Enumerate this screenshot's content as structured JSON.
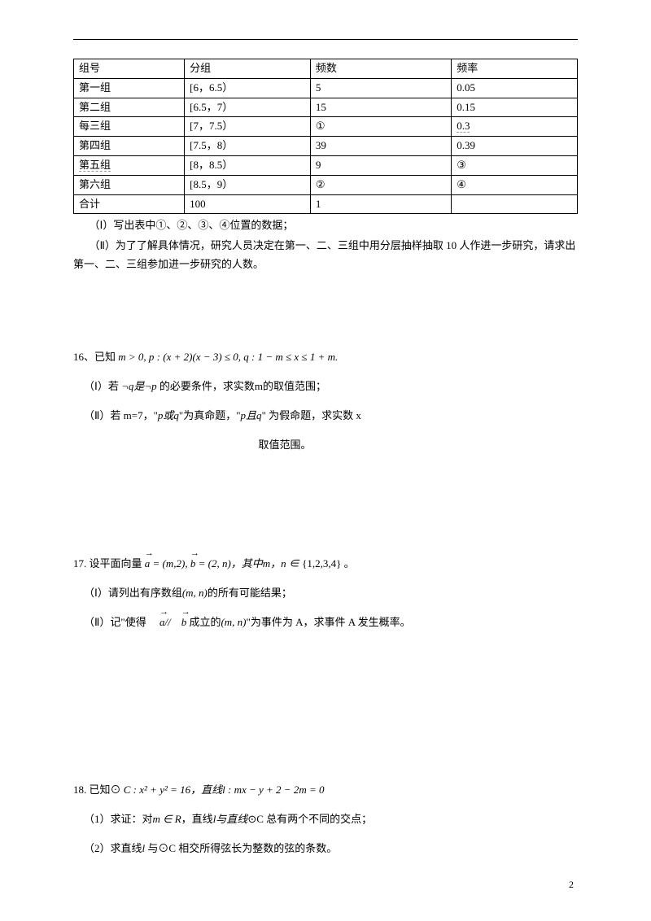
{
  "table": {
    "headers": [
      "组号",
      "分组",
      "频数",
      "频率"
    ],
    "rows": [
      [
        "第一组",
        "[6，6.5）",
        "5",
        "0.05"
      ],
      [
        "第二组",
        "[6.5，7）",
        "15",
        "0.15"
      ],
      [
        "每三组",
        "[7，7.5）",
        "①",
        "0.3"
      ],
      [
        "第四组",
        "[7.5，8）",
        "39",
        "0.39"
      ],
      [
        "第五组",
        "[8，8.5）",
        "9",
        "③"
      ],
      [
        "第六组",
        "[8.5，9）",
        "②",
        "④"
      ],
      [
        "合计",
        "100",
        "1",
        ""
      ]
    ]
  },
  "part1": {
    "line1": "（Ⅰ）写出表中①、②、③、④位置的数据；",
    "line2": "（Ⅱ）为了了解具体情况，研究人员决定在第一、二、三组中用分层抽样抽取 10 人作进一步研究，请求出第一、二、三组参加进一步研究的人数。"
  },
  "p16": {
    "stem_label": "16、已知",
    "stem_math": "m > 0,  p : (x + 2)(x − 3) ≤ 0,  q : 1 − m ≤ x ≤ 1 + m.",
    "sub1_pre": "（Ⅰ）若 ",
    "sub1_mid": "¬q是¬p",
    "sub1_post": " 的必要条件，求实数m的取值范围；",
    "sub2_a": "（Ⅱ）若 m=7，\"",
    "sub2_b": "p或q",
    "sub2_c": "\"为真命题，\"",
    "sub2_d": "p且q",
    "sub2_e": "\" 为假命题，",
    "sub2_f": "求实数 x",
    "sub2_g": "取值范围。"
  },
  "p17": {
    "stem_pre": "17. 设平面向量",
    "vec_a": "a",
    "eq_a": " = (m,2), ",
    "vec_b": "b",
    "eq_b": " = (2,  n)，其中m，n ∈ ",
    "set": "{1,2,3,4}",
    "stem_end": "。",
    "sub1_pre": "（Ⅰ）请列出有序数组",
    "sub1_pair": "(m,  n)",
    "sub1_post": "的所有可能结果；",
    "sub2_pre": "（Ⅱ）记\"使得",
    "sub2_mid": " 成立的",
    "sub2_pair": "(m,  n)",
    "sub2_post": "\"为事件为 A，求事件 A 发生概率。"
  },
  "p18": {
    "stem_pre": "18. 已知⊙",
    "circle_eq": "C : x² + y² = 16，直线l : mx − y + 2 − 2m = 0",
    "sub1_a": "（1）求证：对",
    "sub1_b": "m ∈ R",
    "sub1_c": "，直线",
    "sub1_d": "l与直线",
    "sub1_e": "⊙C 总有两个不同的交点；",
    "sub2_a": "（2）求直线",
    "sub2_b": "l",
    "sub2_c": " 与⊙C 相交所得弦长为整数的弦的条数。"
  },
  "page_number": "2"
}
